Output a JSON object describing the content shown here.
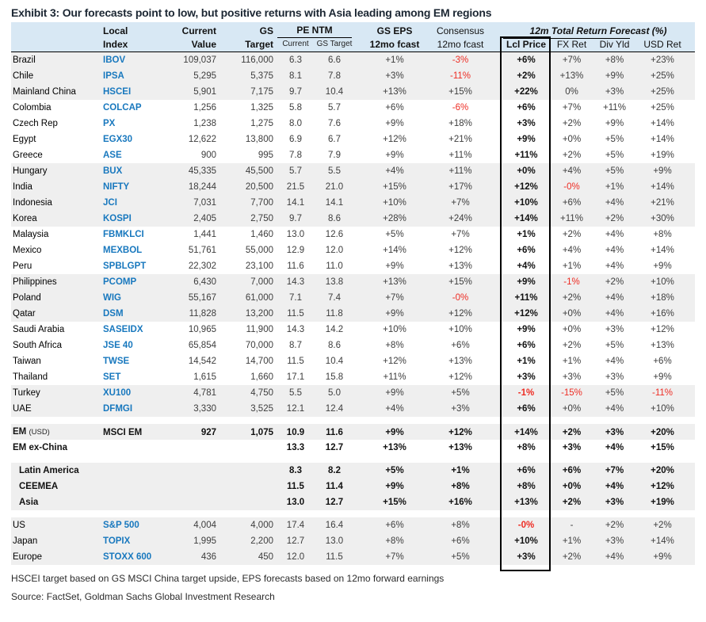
{
  "title": "Exhibit 3: Our forecasts point to low, but positive returns with Asia leading among EM regions",
  "header": {
    "local_1": "Local",
    "local_2": "Index",
    "current_1": "Current",
    "current_2": "Value",
    "gs_1": "GS",
    "gs_2": "Target",
    "pe_group": "PE NTM",
    "pe_sub_1": "Current",
    "pe_sub_2": "GS Target",
    "gseps_1": "GS EPS",
    "gseps_2": "12mo fcast",
    "cons_1": "Consensus",
    "cons_2": "12mo fcast",
    "trf_group": "12m Total Return Forecast (%)",
    "trf_sub_1": "Lcl Price",
    "trf_sub_2": "FX Ret",
    "trf_sub_3": "Div Yld",
    "trf_sub_4": "USD Ret"
  },
  "colors": {
    "header_bg": "#D8E8F4",
    "row_shade": "#EFEFEF",
    "ticker_blue": "#1878BE",
    "negative_red": "#EE2C23"
  },
  "rows": [
    {
      "name": "Brazil",
      "index": "IBOV",
      "value": "109,037",
      "target": "116,000",
      "pe_cur": "6.3",
      "pe_tgt": "6.6",
      "gseps": "+1%",
      "cons": "-3%",
      "lcl": "+6%",
      "fx": "+7%",
      "div": "+8%",
      "usd": "+23%",
      "shade": true
    },
    {
      "name": "Chile",
      "index": "IPSA",
      "value": "5,295",
      "target": "5,375",
      "pe_cur": "8.1",
      "pe_tgt": "7.8",
      "gseps": "+3%",
      "cons": "-11%",
      "lcl": "+2%",
      "fx": "+13%",
      "div": "+9%",
      "usd": "+25%",
      "shade": true
    },
    {
      "name": "Mainland China",
      "index": "HSCEI",
      "value": "5,901",
      "target": "7,175",
      "pe_cur": "9.7",
      "pe_tgt": "10.4",
      "gseps": "+13%",
      "cons": "+15%",
      "lcl": "+22%",
      "fx": "0%",
      "div": "+3%",
      "usd": "+25%",
      "shade": true
    },
    {
      "name": "Colombia",
      "index": "COLCAP",
      "value": "1,256",
      "target": "1,325",
      "pe_cur": "5.8",
      "pe_tgt": "5.7",
      "gseps": "+6%",
      "cons": "-6%",
      "lcl": "+6%",
      "fx": "+7%",
      "div": "+11%",
      "usd": "+25%"
    },
    {
      "name": "Czech Rep",
      "index": "PX",
      "value": "1,238",
      "target": "1,275",
      "pe_cur": "8.0",
      "pe_tgt": "7.6",
      "gseps": "+9%",
      "cons": "+18%",
      "lcl": "+3%",
      "fx": "+2%",
      "div": "+9%",
      "usd": "+14%"
    },
    {
      "name": "Egypt",
      "index": "EGX30",
      "value": "12,622",
      "target": "13,800",
      "pe_cur": "6.9",
      "pe_tgt": "6.7",
      "gseps": "+12%",
      "cons": "+21%",
      "lcl": "+9%",
      "fx": "+0%",
      "div": "+5%",
      "usd": "+14%"
    },
    {
      "name": "Greece",
      "index": "ASE",
      "value": "900",
      "target": "995",
      "pe_cur": "7.8",
      "pe_tgt": "7.9",
      "gseps": "+9%",
      "cons": "+11%",
      "lcl": "+11%",
      "fx": "+2%",
      "div": "+5%",
      "usd": "+19%"
    },
    {
      "name": "Hungary",
      "index": "BUX",
      "value": "45,335",
      "target": "45,500",
      "pe_cur": "5.7",
      "pe_tgt": "5.5",
      "gseps": "+4%",
      "cons": "+11%",
      "lcl": "+0%",
      "fx": "+4%",
      "div": "+5%",
      "usd": "+9%",
      "shade": true
    },
    {
      "name": "India",
      "index": "NIFTY",
      "value": "18,244",
      "target": "20,500",
      "pe_cur": "21.5",
      "pe_tgt": "21.0",
      "gseps": "+15%",
      "cons": "+17%",
      "lcl": "+12%",
      "fx": "-0%",
      "div": "+1%",
      "usd": "+14%",
      "shade": true
    },
    {
      "name": "Indonesia",
      "index": "JCI",
      "value": "7,031",
      "target": "7,700",
      "pe_cur": "14.1",
      "pe_tgt": "14.1",
      "gseps": "+10%",
      "cons": "+7%",
      "lcl": "+10%",
      "fx": "+6%",
      "div": "+4%",
      "usd": "+21%",
      "shade": true
    },
    {
      "name": "Korea",
      "index": "KOSPI",
      "value": "2,405",
      "target": "2,750",
      "pe_cur": "9.7",
      "pe_tgt": "8.6",
      "gseps": "+28%",
      "cons": "+24%",
      "lcl": "+14%",
      "fx": "+11%",
      "div": "+2%",
      "usd": "+30%",
      "shade": true
    },
    {
      "name": "Malaysia",
      "index": "FBMKLCI",
      "value": "1,441",
      "target": "1,460",
      "pe_cur": "13.0",
      "pe_tgt": "12.6",
      "gseps": "+5%",
      "cons": "+7%",
      "lcl": "+1%",
      "fx": "+2%",
      "div": "+4%",
      "usd": "+8%"
    },
    {
      "name": "Mexico",
      "index": "MEXBOL",
      "value": "51,761",
      "target": "55,000",
      "pe_cur": "12.9",
      "pe_tgt": "12.0",
      "gseps": "+14%",
      "cons": "+12%",
      "lcl": "+6%",
      "fx": "+4%",
      "div": "+4%",
      "usd": "+14%"
    },
    {
      "name": "Peru",
      "index": "SPBLGPT",
      "value": "22,302",
      "target": "23,100",
      "pe_cur": "11.6",
      "pe_tgt": "11.0",
      "gseps": "+9%",
      "cons": "+13%",
      "lcl": "+4%",
      "fx": "+1%",
      "div": "+4%",
      "usd": "+9%"
    },
    {
      "name": "Philippines",
      "index": "PCOMP",
      "value": "6,430",
      "target": "7,000",
      "pe_cur": "14.3",
      "pe_tgt": "13.8",
      "gseps": "+13%",
      "cons": "+15%",
      "lcl": "+9%",
      "fx": "-1%",
      "div": "+2%",
      "usd": "+10%",
      "shade": true
    },
    {
      "name": "Poland",
      "index": "WIG",
      "value": "55,167",
      "target": "61,000",
      "pe_cur": "7.1",
      "pe_tgt": "7.4",
      "gseps": "+7%",
      "cons": "-0%",
      "lcl": "+11%",
      "fx": "+2%",
      "div": "+4%",
      "usd": "+18%",
      "shade": true
    },
    {
      "name": "Qatar",
      "index": "DSM",
      "value": "11,828",
      "target": "13,200",
      "pe_cur": "11.5",
      "pe_tgt": "11.8",
      "gseps": "+9%",
      "cons": "+12%",
      "lcl": "+12%",
      "fx": "+0%",
      "div": "+4%",
      "usd": "+16%",
      "shade": true
    },
    {
      "name": "Saudi Arabia",
      "index": "SASEIDX",
      "value": "10,965",
      "target": "11,900",
      "pe_cur": "14.3",
      "pe_tgt": "14.2",
      "gseps": "+10%",
      "cons": "+10%",
      "lcl": "+9%",
      "fx": "+0%",
      "div": "+3%",
      "usd": "+12%"
    },
    {
      "name": "South Africa",
      "index": "JSE 40",
      "value": "65,854",
      "target": "70,000",
      "pe_cur": "8.7",
      "pe_tgt": "8.6",
      "gseps": "+8%",
      "cons": "+6%",
      "lcl": "+6%",
      "fx": "+2%",
      "div": "+5%",
      "usd": "+13%"
    },
    {
      "name": "Taiwan",
      "index": "TWSE",
      "value": "14,542",
      "target": "14,700",
      "pe_cur": "11.5",
      "pe_tgt": "10.4",
      "gseps": "+12%",
      "cons": "+13%",
      "lcl": "+1%",
      "fx": "+1%",
      "div": "+4%",
      "usd": "+6%"
    },
    {
      "name": "Thailand",
      "index": "SET",
      "value": "1,615",
      "target": "1,660",
      "pe_cur": "17.1",
      "pe_tgt": "15.8",
      "gseps": "+11%",
      "cons": "+12%",
      "lcl": "+3%",
      "fx": "+3%",
      "div": "+3%",
      "usd": "+9%"
    },
    {
      "name": "Turkey",
      "index": "XU100",
      "value": "4,781",
      "target": "4,750",
      "pe_cur": "5.5",
      "pe_tgt": "5.0",
      "gseps": "+9%",
      "cons": "+5%",
      "lcl": "-1%",
      "fx": "-15%",
      "div": "+5%",
      "usd": "-11%",
      "shade": true
    },
    {
      "name": "UAE",
      "index": "DFMGI",
      "value": "3,330",
      "target": "3,525",
      "pe_cur": "12.1",
      "pe_tgt": "12.4",
      "gseps": "+4%",
      "cons": "+3%",
      "lcl": "+6%",
      "fx": "+0%",
      "div": "+4%",
      "usd": "+10%",
      "shade": true
    },
    {
      "name": "EM",
      "name2": "(USD)",
      "index": "MSCI EM",
      "value": "927",
      "target": "1,075",
      "pe_cur": "10.9",
      "pe_tgt": "11.6",
      "gseps": "+9%",
      "cons": "+12%",
      "lcl": "+14%",
      "fx": "+2%",
      "div": "+3%",
      "usd": "+20%",
      "shade": true,
      "bold": true,
      "gap_before": true
    },
    {
      "name": "EM ex-China",
      "index": "",
      "value": "",
      "target": "",
      "pe_cur": "13.3",
      "pe_tgt": "12.7",
      "gseps": "+13%",
      "cons": "+13%",
      "lcl": "+8%",
      "fx": "+3%",
      "div": "+4%",
      "usd": "+15%",
      "bold": true
    },
    {
      "name": "Latin America",
      "index": "",
      "value": "",
      "target": "",
      "pe_cur": "8.3",
      "pe_tgt": "8.2",
      "gseps": "+5%",
      "cons": "+1%",
      "lcl": "+6%",
      "fx": "+6%",
      "div": "+7%",
      "usd": "+20%",
      "shade": true,
      "bold": true,
      "indent": true,
      "gap_before": true
    },
    {
      "name": "CEEMEA",
      "index": "",
      "value": "",
      "target": "",
      "pe_cur": "11.5",
      "pe_tgt": "11.4",
      "gseps": "+9%",
      "cons": "+8%",
      "lcl": "+8%",
      "fx": "+0%",
      "div": "+4%",
      "usd": "+12%",
      "shade": true,
      "bold": true,
      "indent": true
    },
    {
      "name": "Asia",
      "index": "",
      "value": "",
      "target": "",
      "pe_cur": "13.0",
      "pe_tgt": "12.7",
      "gseps": "+15%",
      "cons": "+16%",
      "lcl": "+13%",
      "fx": "+2%",
      "div": "+3%",
      "usd": "+19%",
      "shade": true,
      "bold": true,
      "indent": true
    },
    {
      "name": "US",
      "index": "S&P 500",
      "value": "4,004",
      "target": "4,000",
      "pe_cur": "17.4",
      "pe_tgt": "16.4",
      "gseps": "+6%",
      "cons": "+8%",
      "lcl": "-0%",
      "fx": "-",
      "div": "+2%",
      "usd": "+2%",
      "shade": true,
      "gap_before": true
    },
    {
      "name": "Japan",
      "index": "TOPIX",
      "value": "1,995",
      "target": "2,200",
      "pe_cur": "12.7",
      "pe_tgt": "13.0",
      "gseps": "+8%",
      "cons": "+6%",
      "lcl": "+10%",
      "fx": "+1%",
      "div": "+3%",
      "usd": "+14%",
      "shade": true
    },
    {
      "name": "Europe",
      "index": "STOXX 600",
      "value": "436",
      "target": "450",
      "pe_cur": "12.0",
      "pe_tgt": "11.5",
      "gseps": "+7%",
      "cons": "+5%",
      "lcl": "+3%",
      "fx": "+2%",
      "div": "+4%",
      "usd": "+9%",
      "shade": true
    }
  ],
  "footnotes": {
    "note": "HSCEI target based on GS MSCI China target upside, EPS forecasts based on 12mo forward earnings",
    "source": "Source: FactSet, Goldman Sachs Global Investment Research"
  }
}
